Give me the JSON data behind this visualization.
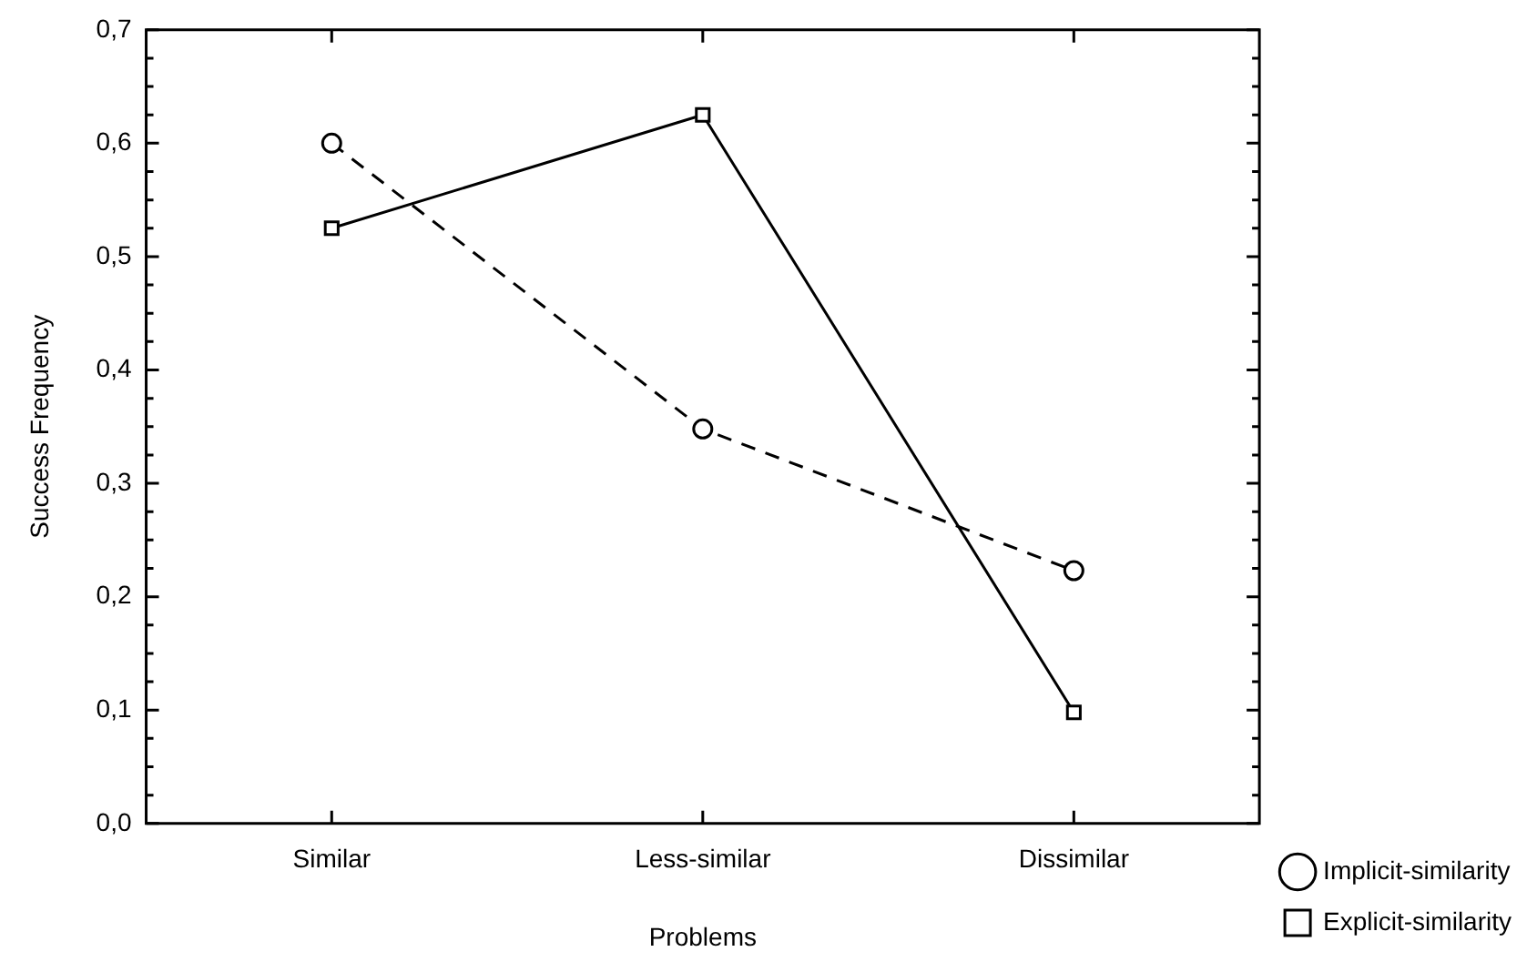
{
  "chart_data": {
    "type": "line",
    "xlabel": "Problems",
    "ylabel": "Success Frequency",
    "categories": [
      "Similar",
      "Less-similar",
      "Dissimilar"
    ],
    "series": [
      {
        "name": "Implicit-similarity",
        "color": "#000000",
        "values": [
          0.6,
          0.348,
          0.223
        ],
        "marker": "circle",
        "line_style": "dashed"
      },
      {
        "name": "Explicit-similarity",
        "color": "#000000",
        "values": [
          0.525,
          0.625,
          0.098
        ],
        "marker": "square",
        "line_style": "solid"
      }
    ],
    "ylim": [
      0,
      0.7
    ],
    "yticks": [
      {
        "value": 0,
        "label": "0,0"
      },
      {
        "value": 0.025,
        "label": null
      },
      {
        "value": 0.05,
        "label": null
      },
      {
        "value": 0.075,
        "label": null
      },
      {
        "value": 0.1,
        "label": "0,1"
      },
      {
        "value": 0.125,
        "label": null
      },
      {
        "value": 0.15,
        "label": null
      },
      {
        "value": 0.175,
        "label": null
      },
      {
        "value": 0.2,
        "label": "0,2"
      },
      {
        "value": 0.225,
        "label": null
      },
      {
        "value": 0.25,
        "label": null
      },
      {
        "value": 0.275,
        "label": null
      },
      {
        "value": 0.3,
        "label": "0,3"
      },
      {
        "value": 0.325,
        "label": null
      },
      {
        "value": 0.35,
        "label": null
      },
      {
        "value": 0.375,
        "label": null
      },
      {
        "value": 0.4,
        "label": "0,4"
      },
      {
        "value": 0.425,
        "label": null
      },
      {
        "value": 0.45,
        "label": null
      },
      {
        "value": 0.475,
        "label": null
      },
      {
        "value": 0.5,
        "label": "0,5"
      },
      {
        "value": 0.525,
        "label": null
      },
      {
        "value": 0.55,
        "label": null
      },
      {
        "value": 0.575,
        "label": null
      },
      {
        "value": 0.6,
        "label": "0,6"
      },
      {
        "value": 0.625,
        "label": null
      },
      {
        "value": 0.65,
        "label": null
      },
      {
        "value": 0.675,
        "label": null
      },
      {
        "value": 0.7,
        "label": "0,7"
      }
    ],
    "grid": false,
    "legend": "bottom right"
  }
}
